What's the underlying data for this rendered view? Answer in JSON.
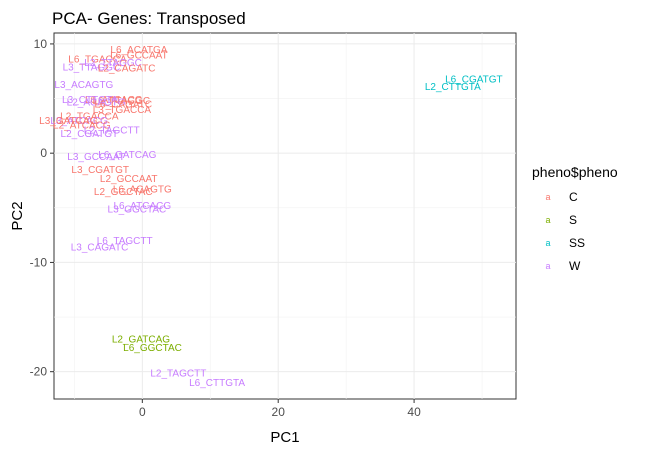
{
  "chart_data": {
    "type": "scatter",
    "title": "PCA- Genes: Transposed",
    "xlabel": "PC1",
    "ylabel": "PC2",
    "xlim": [
      -13,
      55
    ],
    "ylim": [
      -22.5,
      11
    ],
    "x_ticks": [
      0,
      20,
      40
    ],
    "y_ticks": [
      10,
      0,
      -10,
      -20
    ],
    "grid": true,
    "legend": {
      "title": "pheno$pheno",
      "position": "right",
      "glyph": "a",
      "entries": [
        {
          "name": "C",
          "color": "#F8766D"
        },
        {
          "name": "S",
          "color": "#7CAE00"
        },
        {
          "name": "SS",
          "color": "#00BFC4"
        },
        {
          "name": "W",
          "color": "#C77CFF"
        }
      ]
    },
    "points": [
      {
        "label": "L6_ACATGA",
        "x": -0.5,
        "y": 9.5,
        "group": "C"
      },
      {
        "label": "L6_GCCAAT",
        "x": -0.5,
        "y": 9.0,
        "group": "C"
      },
      {
        "label": "L6_TGACCA",
        "x": -6.6,
        "y": 8.6,
        "group": "C"
      },
      {
        "label": "L2_TTAGGC",
        "x": -4.3,
        "y": 8.3,
        "group": "W"
      },
      {
        "label": "L3_TTAGGC",
        "x": -7.5,
        "y": 7.9,
        "group": "W"
      },
      {
        "label": "L2_CAGATC",
        "x": -2.3,
        "y": 7.8,
        "group": "C"
      },
      {
        "label": "L6_CGATGT",
        "x": 48.8,
        "y": 6.8,
        "group": "SS"
      },
      {
        "label": "L2_CTTGTA",
        "x": 45.7,
        "y": 6.1,
        "group": "SS"
      },
      {
        "label": "L3_ACAGTG",
        "x": -8.6,
        "y": 6.3,
        "group": "W"
      },
      {
        "label": "L6_ATCACG",
        "x": -4.2,
        "y": 4.9,
        "group": "C"
      },
      {
        "label": "L6_TTAGGC",
        "x": -3.1,
        "y": 4.8,
        "group": "C"
      },
      {
        "label": "L3_CTTGTA",
        "x": -7.7,
        "y": 4.9,
        "group": "W"
      },
      {
        "label": "L2_ACAGTG",
        "x": -6.8,
        "y": 4.7,
        "group": "W"
      },
      {
        "label": "L3_TGACCA",
        "x": -3.0,
        "y": 4.0,
        "group": "C"
      },
      {
        "label": "L6_CAGATC",
        "x": -2.8,
        "y": 4.5,
        "group": "C"
      },
      {
        "label": "L2_TGACCA",
        "x": -7.8,
        "y": 3.4,
        "group": "C"
      },
      {
        "label": "L3_ATCACG",
        "x": -9.3,
        "y": 3.0,
        "group": "W"
      },
      {
        "label": "L3_GATCAG",
        "x": -10.9,
        "y": 3.0,
        "group": "C"
      },
      {
        "label": "L2_ATCACG",
        "x": -8.9,
        "y": 2.6,
        "group": "C"
      },
      {
        "label": "L2_TAGCTT",
        "x": -4.5,
        "y": 2.1,
        "group": "W"
      },
      {
        "label": "L2_CGATGT",
        "x": -7.8,
        "y": 1.8,
        "group": "W"
      },
      {
        "label": "L6_GATCAG",
        "x": -2.2,
        "y": -0.1,
        "group": "W"
      },
      {
        "label": "L3_GCCAAT",
        "x": -6.8,
        "y": -0.3,
        "group": "W"
      },
      {
        "label": "L3_CGATGT",
        "x": -6.2,
        "y": -1.5,
        "group": "C"
      },
      {
        "label": "L2_GCCAAT",
        "x": -2.0,
        "y": -2.3,
        "group": "C"
      },
      {
        "label": "L6_ACAGTG",
        "x": 0.0,
        "y": -3.3,
        "group": "C"
      },
      {
        "label": "L2_GGCTAC",
        "x": -2.8,
        "y": -3.5,
        "group": "C"
      },
      {
        "label": "L6_ATCACG",
        "x": 0.0,
        "y": -4.8,
        "group": "W"
      },
      {
        "label": "L3_GGCTAC",
        "x": -0.8,
        "y": -5.1,
        "group": "W"
      },
      {
        "label": "L6_TAGCTT",
        "x": -2.6,
        "y": -8.0,
        "group": "W"
      },
      {
        "label": "L3_CAGATC",
        "x": -6.3,
        "y": -8.6,
        "group": "W"
      },
      {
        "label": "L2_GATCAG",
        "x": -0.2,
        "y": -17.0,
        "group": "S"
      },
      {
        "label": "L6_GGCTAC",
        "x": 1.5,
        "y": -17.8,
        "group": "S"
      },
      {
        "label": "L2_TAGCTT",
        "x": 5.3,
        "y": -20.1,
        "group": "W"
      },
      {
        "label": "L6_CTTGTA",
        "x": 11.0,
        "y": -21.0,
        "group": "W"
      }
    ]
  }
}
